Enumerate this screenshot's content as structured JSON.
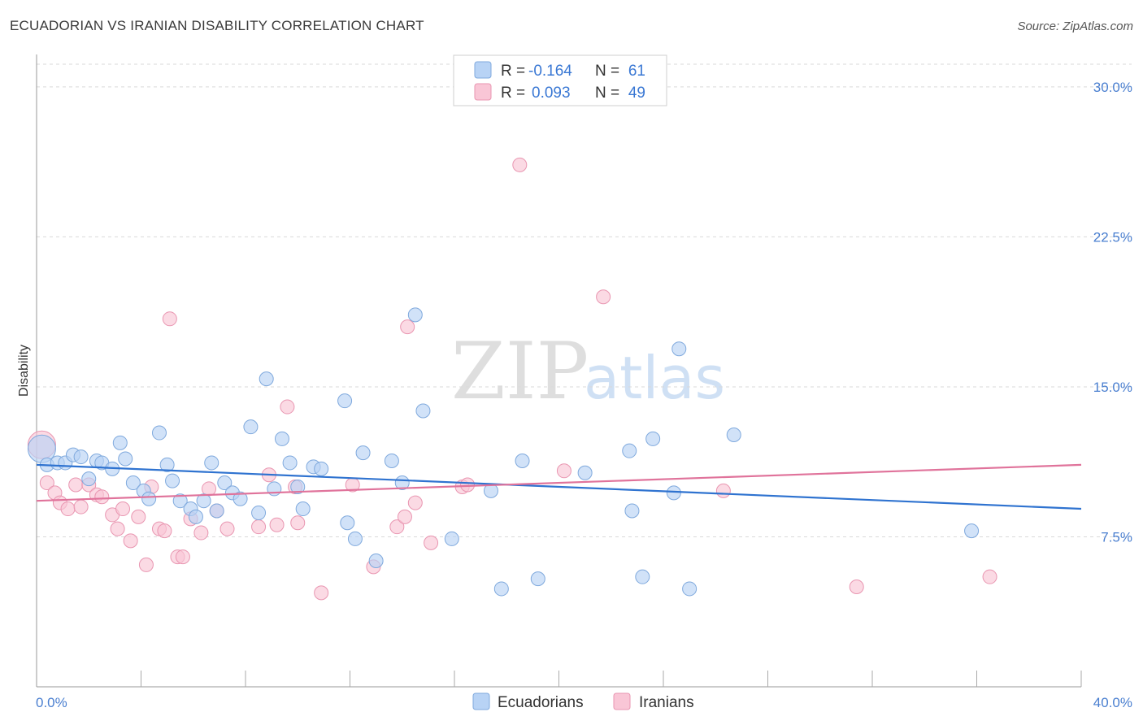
{
  "title": "ECUADORIAN VS IRANIAN DISABILITY CORRELATION CHART",
  "source": "Source: ZipAtlas.com",
  "watermark": {
    "zip": "ZIP",
    "atlas": "atlas"
  },
  "colors": {
    "ecuadorians_fill": "#b8d3f5",
    "ecuadorians_stroke": "#7fa9dd",
    "ecuadorians_line": "#2f73d0",
    "iranians_fill": "#f9c6d6",
    "iranians_stroke": "#e996b1",
    "iranians_line": "#e0739b",
    "tick_label": "#4a7fd0",
    "grid": "#d9d9d9"
  },
  "legend": {
    "rows": [
      {
        "r_label": "R =",
        "r_value": "-0.164",
        "n_label": "N =",
        "n_value": "61"
      },
      {
        "r_label": "R =",
        "r_value": "0.093",
        "n_label": "N =",
        "n_value": "49"
      }
    ]
  },
  "chart_data": {
    "type": "scatter",
    "title": "ECUADORIAN VS IRANIAN DISABILITY CORRELATION CHART",
    "xlabel": "",
    "ylabel": "Disability",
    "xlim": [
      0,
      40
    ],
    "ylim": [
      0,
      31.5
    ],
    "x_tick_labels": [
      "0.0%",
      "40.0%"
    ],
    "y_ticks": [
      7.5,
      15.0,
      22.5,
      30.0
    ],
    "y_tick_labels": [
      "7.5%",
      "15.0%",
      "22.5%",
      "30.0%"
    ],
    "grid": "horizontal dashed",
    "legend_position": "top-center",
    "series": [
      {
        "name": "Ecuadorians",
        "R": -0.164,
        "N": 61,
        "trend": {
          "x": [
            0,
            40
          ],
          "y": [
            11.1,
            8.9
          ]
        },
        "points": [
          {
            "x": 0.2,
            "y": 11.9,
            "s": 2
          },
          {
            "x": 0.4,
            "y": 11.1
          },
          {
            "x": 0.8,
            "y": 11.2
          },
          {
            "x": 1.1,
            "y": 11.2
          },
          {
            "x": 1.4,
            "y": 11.6
          },
          {
            "x": 1.7,
            "y": 11.5
          },
          {
            "x": 2.0,
            "y": 10.4
          },
          {
            "x": 2.3,
            "y": 11.3
          },
          {
            "x": 2.5,
            "y": 11.2
          },
          {
            "x": 2.9,
            "y": 10.9
          },
          {
            "x": 3.2,
            "y": 12.2
          },
          {
            "x": 3.4,
            "y": 11.4
          },
          {
            "x": 3.7,
            "y": 10.2
          },
          {
            "x": 4.1,
            "y": 9.8
          },
          {
            "x": 4.3,
            "y": 9.4
          },
          {
            "x": 4.7,
            "y": 12.7
          },
          {
            "x": 5.0,
            "y": 11.1
          },
          {
            "x": 5.2,
            "y": 10.3
          },
          {
            "x": 5.5,
            "y": 9.3
          },
          {
            "x": 5.9,
            "y": 8.9
          },
          {
            "x": 6.1,
            "y": 8.5
          },
          {
            "x": 6.4,
            "y": 9.3
          },
          {
            "x": 6.7,
            "y": 11.2
          },
          {
            "x": 6.9,
            "y": 8.8
          },
          {
            "x": 7.2,
            "y": 10.2
          },
          {
            "x": 7.5,
            "y": 9.7
          },
          {
            "x": 7.8,
            "y": 9.4
          },
          {
            "x": 8.2,
            "y": 13.0
          },
          {
            "x": 8.5,
            "y": 8.7
          },
          {
            "x": 8.8,
            "y": 15.4
          },
          {
            "x": 9.1,
            "y": 9.9
          },
          {
            "x": 9.4,
            "y": 12.4
          },
          {
            "x": 9.7,
            "y": 11.2
          },
          {
            "x": 10.0,
            "y": 10.0
          },
          {
            "x": 10.2,
            "y": 8.9
          },
          {
            "x": 10.6,
            "y": 11.0
          },
          {
            "x": 10.9,
            "y": 10.9
          },
          {
            "x": 11.8,
            "y": 14.3
          },
          {
            "x": 11.9,
            "y": 8.2
          },
          {
            "x": 12.2,
            "y": 7.4
          },
          {
            "x": 12.5,
            "y": 11.7
          },
          {
            "x": 13.0,
            "y": 6.3
          },
          {
            "x": 13.6,
            "y": 11.3
          },
          {
            "x": 14.0,
            "y": 10.2
          },
          {
            "x": 14.5,
            "y": 18.6
          },
          {
            "x": 14.8,
            "y": 13.8
          },
          {
            "x": 15.9,
            "y": 7.4
          },
          {
            "x": 17.4,
            "y": 9.8
          },
          {
            "x": 17.8,
            "y": 4.9
          },
          {
            "x": 18.6,
            "y": 11.3
          },
          {
            "x": 19.2,
            "y": 5.4
          },
          {
            "x": 21.0,
            "y": 10.7
          },
          {
            "x": 22.7,
            "y": 11.8
          },
          {
            "x": 22.8,
            "y": 8.8
          },
          {
            "x": 23.2,
            "y": 5.5
          },
          {
            "x": 23.6,
            "y": 12.4
          },
          {
            "x": 24.4,
            "y": 9.7
          },
          {
            "x": 24.6,
            "y": 16.9
          },
          {
            "x": 25.0,
            "y": 4.9
          },
          {
            "x": 26.7,
            "y": 12.6
          },
          {
            "x": 35.8,
            "y": 7.8
          }
        ]
      },
      {
        "name": "Iranians",
        "R": 0.093,
        "N": 49,
        "trend": {
          "x": [
            0,
            40
          ],
          "y": [
            9.3,
            11.1
          ]
        },
        "points": [
          {
            "x": 0.2,
            "y": 12.1,
            "s": 2
          },
          {
            "x": 0.4,
            "y": 10.2
          },
          {
            "x": 0.7,
            "y": 9.7
          },
          {
            "x": 0.9,
            "y": 9.2
          },
          {
            "x": 1.2,
            "y": 8.9
          },
          {
            "x": 1.5,
            "y": 10.1
          },
          {
            "x": 1.7,
            "y": 9.0
          },
          {
            "x": 2.0,
            "y": 10.1
          },
          {
            "x": 2.3,
            "y": 9.6
          },
          {
            "x": 2.5,
            "y": 9.5
          },
          {
            "x": 2.9,
            "y": 8.6
          },
          {
            "x": 3.1,
            "y": 7.9
          },
          {
            "x": 3.3,
            "y": 8.9
          },
          {
            "x": 3.6,
            "y": 7.3
          },
          {
            "x": 3.9,
            "y": 8.5
          },
          {
            "x": 4.2,
            "y": 6.1
          },
          {
            "x": 4.4,
            "y": 10.0
          },
          {
            "x": 4.7,
            "y": 7.9
          },
          {
            "x": 4.9,
            "y": 7.8
          },
          {
            "x": 5.1,
            "y": 18.4
          },
          {
            "x": 5.4,
            "y": 6.5
          },
          {
            "x": 5.6,
            "y": 6.5
          },
          {
            "x": 5.9,
            "y": 8.4
          },
          {
            "x": 6.3,
            "y": 7.7
          },
          {
            "x": 6.6,
            "y": 9.9
          },
          {
            "x": 6.9,
            "y": 8.8
          },
          {
            "x": 7.3,
            "y": 7.9
          },
          {
            "x": 8.5,
            "y": 8.0
          },
          {
            "x": 8.9,
            "y": 10.6
          },
          {
            "x": 9.2,
            "y": 8.1
          },
          {
            "x": 9.6,
            "y": 14.0
          },
          {
            "x": 9.9,
            "y": 10.0
          },
          {
            "x": 10.0,
            "y": 8.2
          },
          {
            "x": 10.9,
            "y": 4.7
          },
          {
            "x": 12.1,
            "y": 10.1
          },
          {
            "x": 12.9,
            "y": 6.0
          },
          {
            "x": 13.8,
            "y": 8.0
          },
          {
            "x": 14.1,
            "y": 8.5
          },
          {
            "x": 14.2,
            "y": 18.0
          },
          {
            "x": 14.5,
            "y": 9.2
          },
          {
            "x": 15.1,
            "y": 7.2
          },
          {
            "x": 16.3,
            "y": 10.0
          },
          {
            "x": 16.5,
            "y": 10.1
          },
          {
            "x": 18.5,
            "y": 26.1
          },
          {
            "x": 20.2,
            "y": 10.8
          },
          {
            "x": 21.7,
            "y": 19.5
          },
          {
            "x": 26.3,
            "y": 9.8
          },
          {
            "x": 31.4,
            "y": 5.0
          },
          {
            "x": 36.5,
            "y": 5.5
          }
        ]
      }
    ]
  }
}
